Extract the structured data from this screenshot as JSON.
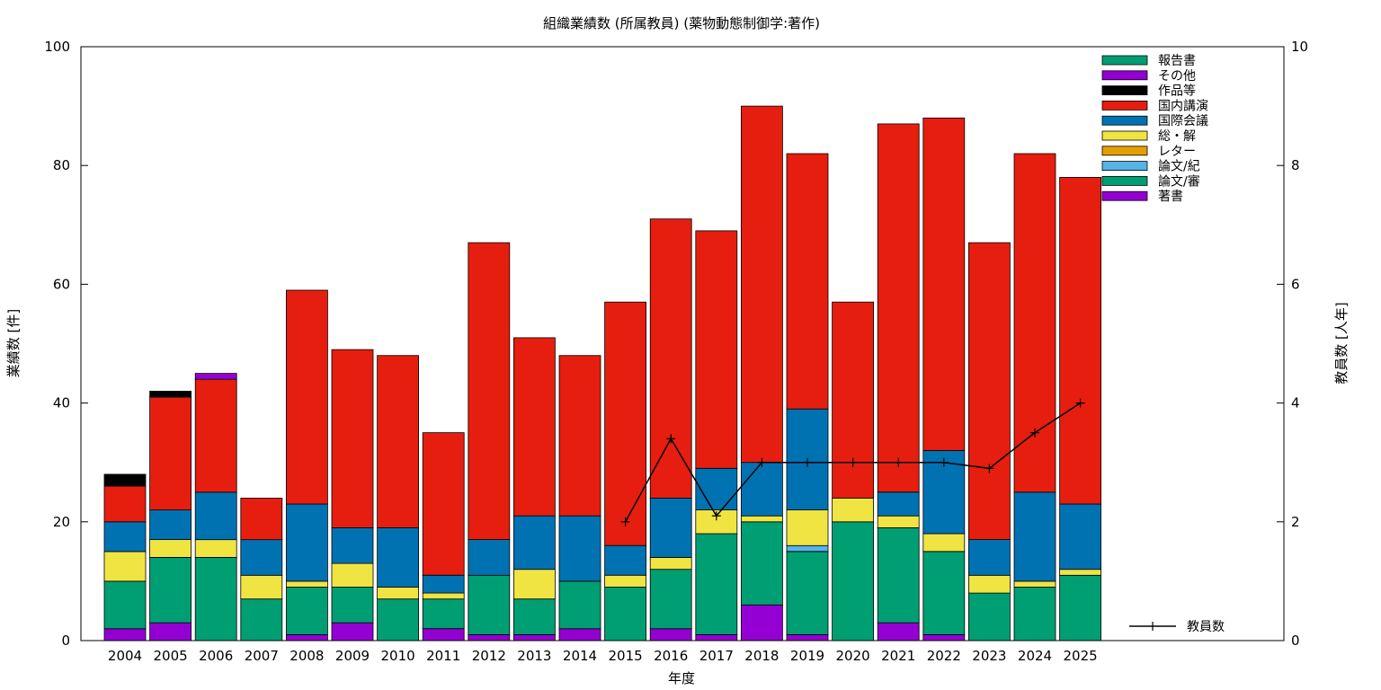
{
  "chart_data": {
    "type": "bar",
    "stacked": true,
    "title": "組織業績数 (所属教員) (薬物動態制御学:著作)",
    "xlabel": "年度",
    "ylabel": "業績数 [件]",
    "y2label": "教員数 [人年]",
    "ylim": [
      0,
      100
    ],
    "y2lim": [
      0,
      10
    ],
    "yticks": [
      0,
      20,
      40,
      60,
      80,
      100
    ],
    "y2ticks": [
      0,
      2,
      4,
      6,
      8,
      10
    ],
    "grid": false,
    "legend_position": "top-right",
    "categories": [
      "2004",
      "2005",
      "2006",
      "2007",
      "2008",
      "2009",
      "2010",
      "2011",
      "2012",
      "2013",
      "2014",
      "2015",
      "2016",
      "2017",
      "2018",
      "2019",
      "2020",
      "2021",
      "2022",
      "2023",
      "2024",
      "2025"
    ],
    "series": [
      {
        "name": "著書",
        "color": "#9400d3",
        "values": [
          2,
          3,
          0,
          0,
          1,
          3,
          0,
          2,
          1,
          1,
          2,
          0,
          2,
          1,
          6,
          1,
          0,
          3,
          1,
          0,
          0,
          0
        ]
      },
      {
        "name": "論文/審",
        "color": "#009e73",
        "values": [
          8,
          11,
          14,
          7,
          8,
          6,
          7,
          5,
          10,
          6,
          8,
          9,
          10,
          17,
          14,
          14,
          20,
          16,
          14,
          8,
          9,
          11
        ]
      },
      {
        "name": "論文/紀",
        "color": "#56b4e9",
        "values": [
          0,
          0,
          0,
          0,
          0,
          0,
          0,
          0,
          0,
          0,
          0,
          0,
          0,
          0,
          0,
          1,
          0,
          0,
          0,
          0,
          0,
          0
        ]
      },
      {
        "name": "レター",
        "color": "#e69f00",
        "values": [
          0,
          0,
          0,
          0,
          0,
          0,
          0,
          0,
          0,
          0,
          0,
          0,
          0,
          0,
          0,
          0,
          0,
          0,
          0,
          0,
          0,
          0
        ]
      },
      {
        "name": "総・解",
        "color": "#f0e442",
        "values": [
          5,
          3,
          3,
          4,
          1,
          4,
          2,
          1,
          0,
          5,
          0,
          2,
          2,
          4,
          1,
          6,
          4,
          2,
          3,
          3,
          1,
          1
        ]
      },
      {
        "name": "国際会議",
        "color": "#0072b2",
        "values": [
          5,
          5,
          8,
          6,
          13,
          6,
          10,
          3,
          6,
          9,
          11,
          5,
          10,
          7,
          9,
          17,
          0,
          4,
          14,
          6,
          15,
          11
        ]
      },
      {
        "name": "国内講演",
        "color": "#e51e10",
        "values": [
          6,
          19,
          19,
          7,
          36,
          30,
          29,
          24,
          50,
          30,
          27,
          41,
          47,
          40,
          60,
          43,
          33,
          62,
          56,
          50,
          57,
          55
        ]
      },
      {
        "name": "作品等",
        "color": "#000000",
        "values": [
          2,
          1,
          0,
          0,
          0,
          0,
          0,
          0,
          0,
          0,
          0,
          0,
          0,
          0,
          0,
          0,
          0,
          0,
          0,
          0,
          0,
          0
        ]
      },
      {
        "name": "その他",
        "color": "#9400d3",
        "values": [
          0,
          0,
          1,
          0,
          0,
          0,
          0,
          0,
          0,
          0,
          0,
          0,
          0,
          0,
          0,
          0,
          0,
          0,
          0,
          0,
          0,
          0
        ]
      },
      {
        "name": "報告書",
        "color": "#009e73",
        "values": [
          0,
          0,
          0,
          0,
          0,
          0,
          0,
          0,
          0,
          0,
          0,
          0,
          0,
          0,
          0,
          0,
          0,
          0,
          0,
          0,
          0,
          0
        ]
      }
    ],
    "line_series": {
      "name": "教員数",
      "color": "#000000",
      "axis": "right",
      "x": [
        "2015",
        "2016",
        "2017",
        "2018",
        "2019",
        "2020",
        "2021",
        "2022",
        "2023",
        "2024",
        "2025"
      ],
      "values": [
        2,
        3.4,
        2.1,
        3,
        3,
        3,
        3,
        3,
        2.9,
        3.5,
        4
      ]
    }
  }
}
